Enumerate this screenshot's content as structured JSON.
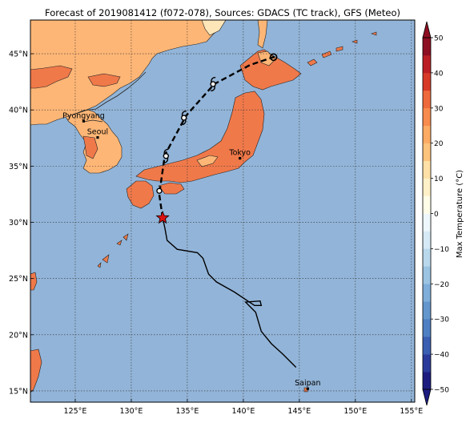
{
  "title": "Forecast of 2019081412 (f072-078), Sources: GDACS (TC track), GFS (Meteo)",
  "colors": {
    "ocean": "#92b4d8",
    "land_hot": "#f0794a",
    "land_warm": "#fdb676",
    "land_pale": "#ffe6b8",
    "coast": "#222222",
    "track": "#000000",
    "star": "#dd1111"
  },
  "map": {
    "lon_range": [
      121,
      155.3
    ],
    "lat_range": [
      14,
      48
    ],
    "lon_ticks": [
      {
        "value": 125,
        "label": "125°E"
      },
      {
        "value": 130,
        "label": "130°E"
      },
      {
        "value": 135,
        "label": "135°E"
      },
      {
        "value": 140,
        "label": "140°E"
      },
      {
        "value": 145,
        "label": "145°E"
      },
      {
        "value": 150,
        "label": "150°E"
      },
      {
        "value": 155,
        "label": "155°E"
      }
    ],
    "lat_ticks": [
      {
        "value": 15,
        "label": "15°N"
      },
      {
        "value": 20,
        "label": "20°N"
      },
      {
        "value": 25,
        "label": "25°N"
      },
      {
        "value": 30,
        "label": "30°N"
      },
      {
        "value": 35,
        "label": "35°N"
      },
      {
        "value": 40,
        "label": "40°N"
      },
      {
        "value": 45,
        "label": "45°N"
      }
    ],
    "grid": "dotted",
    "cities": [
      {
        "name": "Pyongyang",
        "lon": 125.75,
        "lat": 39.0
      },
      {
        "name": "Seoul",
        "lon": 127.0,
        "lat": 37.55
      },
      {
        "name": "Tokyo",
        "lon": 139.7,
        "lat": 35.7
      },
      {
        "name": "Saipan",
        "lon": 145.75,
        "lat": 15.2
      }
    ],
    "past_track": [
      [
        144.7,
        17.1
      ],
      [
        143.5,
        18.3
      ],
      [
        142.5,
        19.2
      ],
      [
        141.6,
        20.3
      ],
      [
        141.1,
        22.0
      ],
      [
        140.2,
        22.9
      ],
      [
        141.5,
        23.0
      ],
      [
        141.6,
        22.6
      ],
      [
        141.0,
        22.6
      ],
      [
        139.2,
        23.8
      ],
      [
        137.6,
        24.7
      ],
      [
        136.9,
        25.4
      ],
      [
        136.4,
        26.8
      ],
      [
        135.9,
        27.3
      ],
      [
        134.1,
        27.6
      ],
      [
        133.2,
        28.4
      ],
      [
        133.0,
        29.5
      ],
      [
        132.8,
        30.4
      ]
    ],
    "forecast_track": [
      [
        132.8,
        30.4
      ],
      [
        132.5,
        32.5
      ],
      [
        133.0,
        36.0
      ],
      [
        134.9,
        39.5
      ],
      [
        137.4,
        42.3
      ],
      [
        140.6,
        44.0
      ],
      [
        142.7,
        44.7
      ]
    ],
    "current_position": {
      "lon": 132.8,
      "lat": 30.4
    },
    "forecast_points": [
      {
        "lon": 132.5,
        "lat": 32.8,
        "symbol": "dot"
      },
      {
        "lon": 133.1,
        "lat": 35.9,
        "symbol": "cyclone"
      },
      {
        "lon": 134.7,
        "lat": 39.3,
        "symbol": "cyclone"
      },
      {
        "lon": 137.3,
        "lat": 42.3,
        "symbol": "cyclone"
      },
      {
        "lon": 142.7,
        "lat": 44.7,
        "symbol": "circle"
      }
    ]
  },
  "colorbar": {
    "label": "Max Temperature (°C)",
    "ticks": [
      "50",
      "40",
      "30",
      "20",
      "10",
      "0",
      "−10",
      "−20",
      "−30",
      "−40",
      "−50"
    ],
    "levels": [
      -50,
      -45,
      -40,
      -35,
      -30,
      -25,
      -20,
      -15,
      -10,
      -5,
      0,
      5,
      10,
      15,
      20,
      25,
      30,
      35,
      40,
      45,
      50
    ],
    "bin_colors": [
      "#1c1c80",
      "#2a3a9a",
      "#3a5fb2",
      "#4d7fc2",
      "#6496cd",
      "#7eaed9",
      "#9bc4e2",
      "#b9d8ec",
      "#d6eaf5",
      "#eef7fb",
      "#fffde8",
      "#fff0c8",
      "#ffe0a6",
      "#fdc27c",
      "#fdab64",
      "#f88b4e",
      "#ee6a3c",
      "#d83a28",
      "#bb1e24",
      "#8e0e22"
    ],
    "extend": "both"
  }
}
